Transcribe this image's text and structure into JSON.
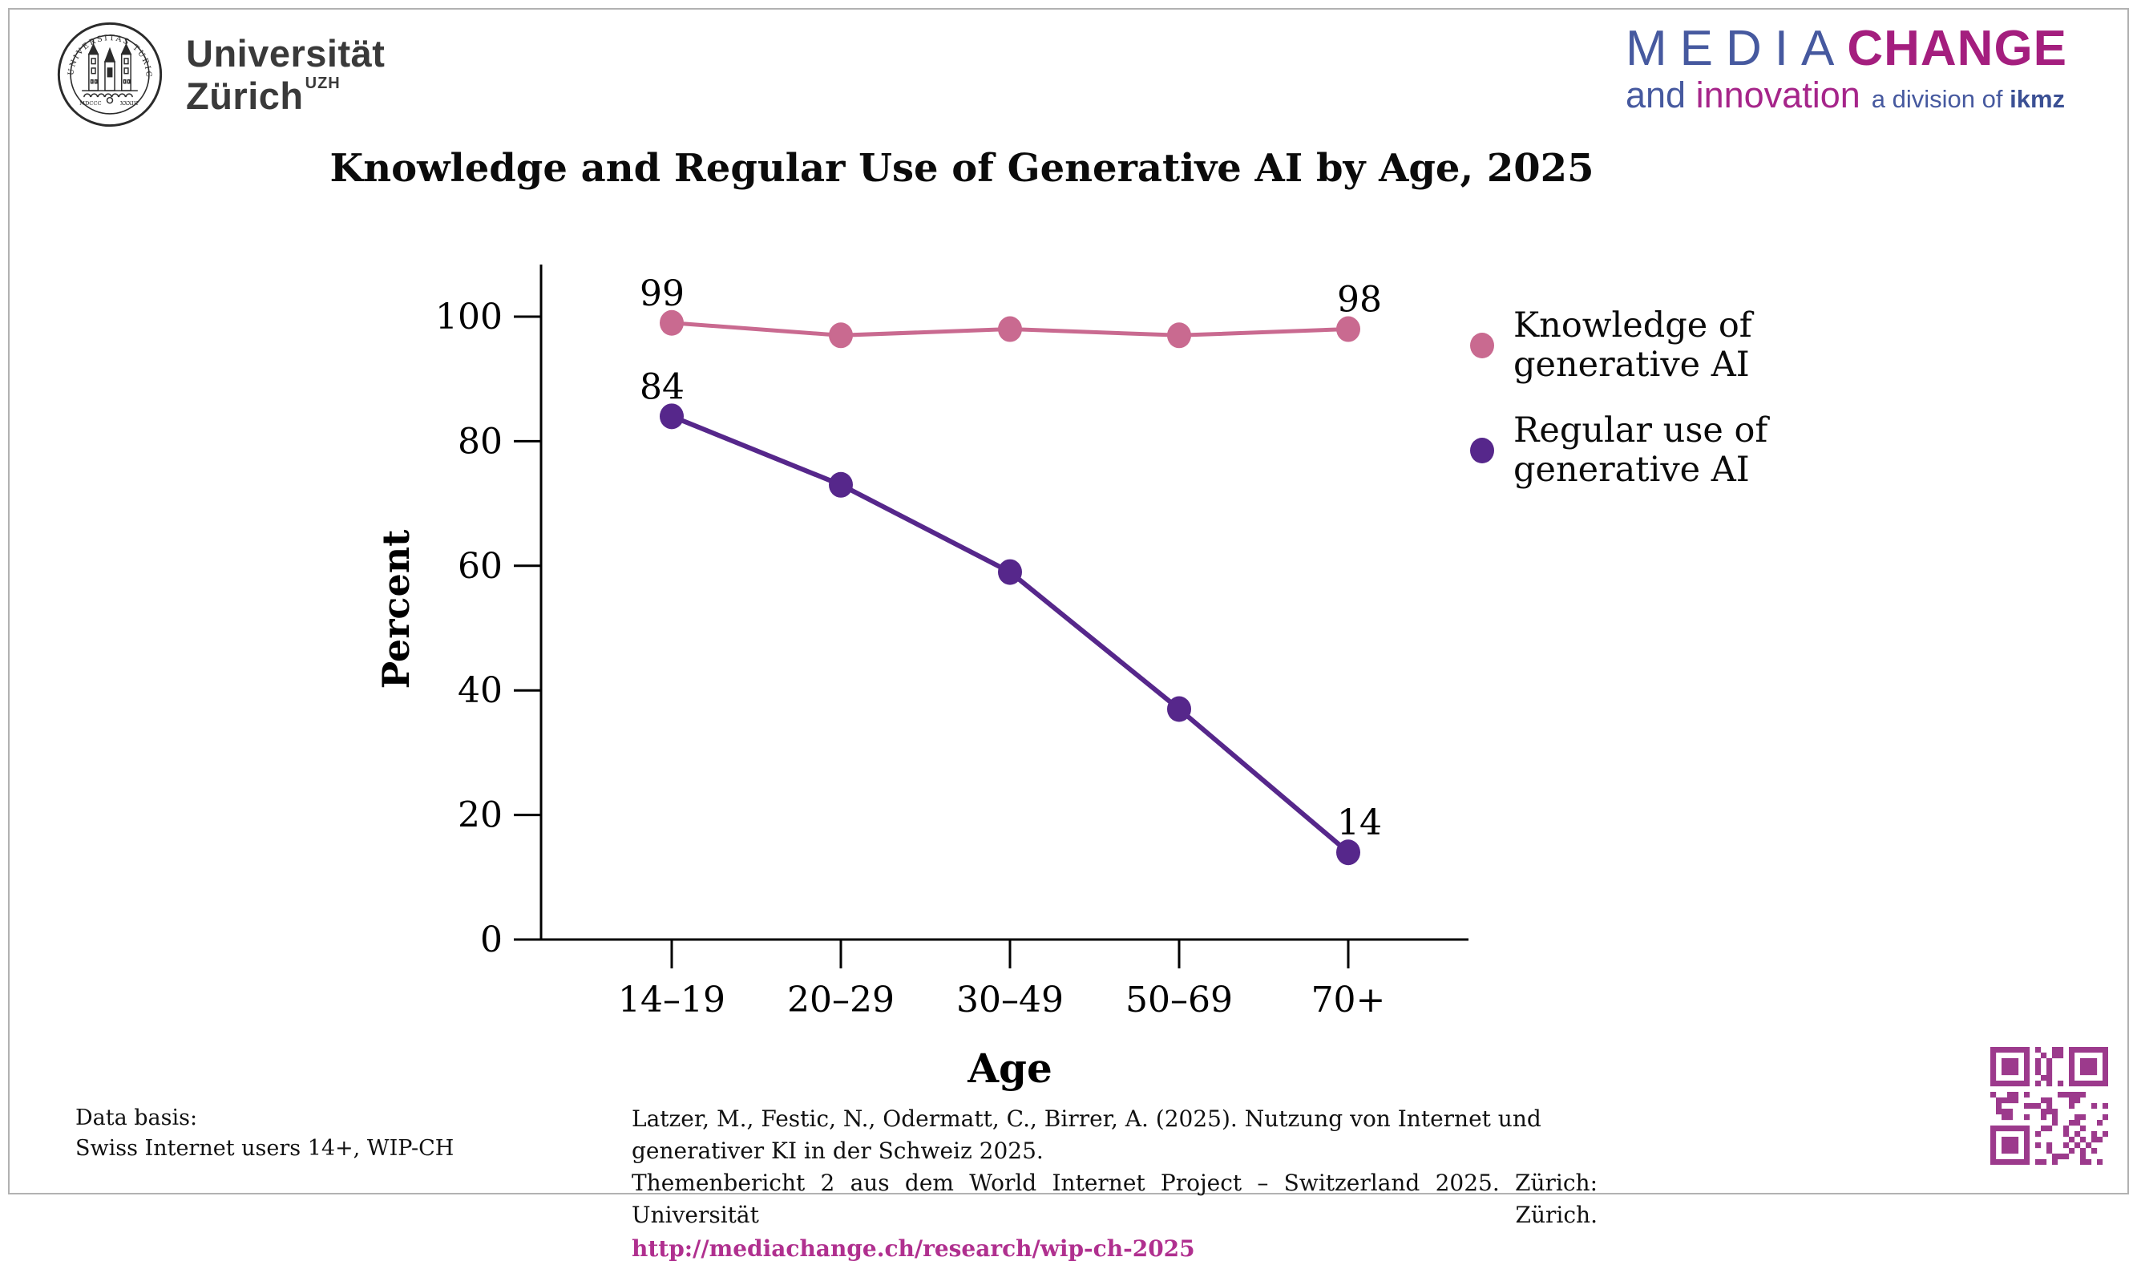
{
  "header": {
    "uzh_logo": {
      "name_line1": "Universität",
      "name_line2": "Zürich",
      "suffix": "UZH",
      "seal_arc_text": "UNIVERSITAS TURICENSIS",
      "seal_bottom_left": "MDCCC",
      "seal_bottom_right": "XXXIII"
    },
    "mediachange_logo": {
      "media": "MEDIA",
      "change": "CHANGE",
      "and": "and ",
      "innovation": "innovation",
      "division": "a division of ",
      "ikmz": "ikmz",
      "blue": "#46599f",
      "magenta": "#a41e7e"
    }
  },
  "title": "Knowledge and Regular Use of Generative AI by Age, 2025",
  "chart_data": {
    "type": "line",
    "title": "Knowledge and Regular Use of Generative AI by Age, 2025",
    "categories": [
      "14–19",
      "20–29",
      "30–49",
      "50–69",
      "70+"
    ],
    "series": [
      {
        "name": "Knowledge of generative AI",
        "color": "#c96a90",
        "values": [
          99,
          97,
          98,
          97,
          98
        ],
        "labeled_points": [
          0,
          4
        ]
      },
      {
        "name": "Regular use of generative AI",
        "color": "#56278b",
        "values": [
          84,
          73,
          59,
          37,
          14
        ],
        "labeled_points": [
          0,
          4
        ]
      }
    ],
    "xlabel": "Age",
    "ylabel": "Percent",
    "ylim": [
      0,
      100
    ],
    "yticks": [
      0,
      20,
      40,
      60,
      80,
      100
    ],
    "grid": false,
    "legend_position": "right"
  },
  "legend": {
    "items": [
      {
        "label_line1": "Knowledge of",
        "label_line2": "generative AI",
        "color": "#c96a90"
      },
      {
        "label_line1": "Regular use of",
        "label_line2": "generative AI",
        "color": "#56278b"
      }
    ]
  },
  "footer": {
    "data_basis_line1": "Data basis:",
    "data_basis_line2": "Swiss Internet users 14+, WIP-CH",
    "citation_line1": "Latzer, M., Festic, N., Odermatt, C., Birrer, A. (2025). Nutzung von Internet und generativer KI in der Schweiz 2025.",
    "citation_line2": "Themenbericht 2 aus dem World Internet Project – Switzerland 2025. Zürich: Universität Zürich.",
    "citation_link": "http://mediachange.ch/research/wip-ch-2025",
    "link_color": "#b0308f",
    "qr_color": "#9c3a8c"
  }
}
